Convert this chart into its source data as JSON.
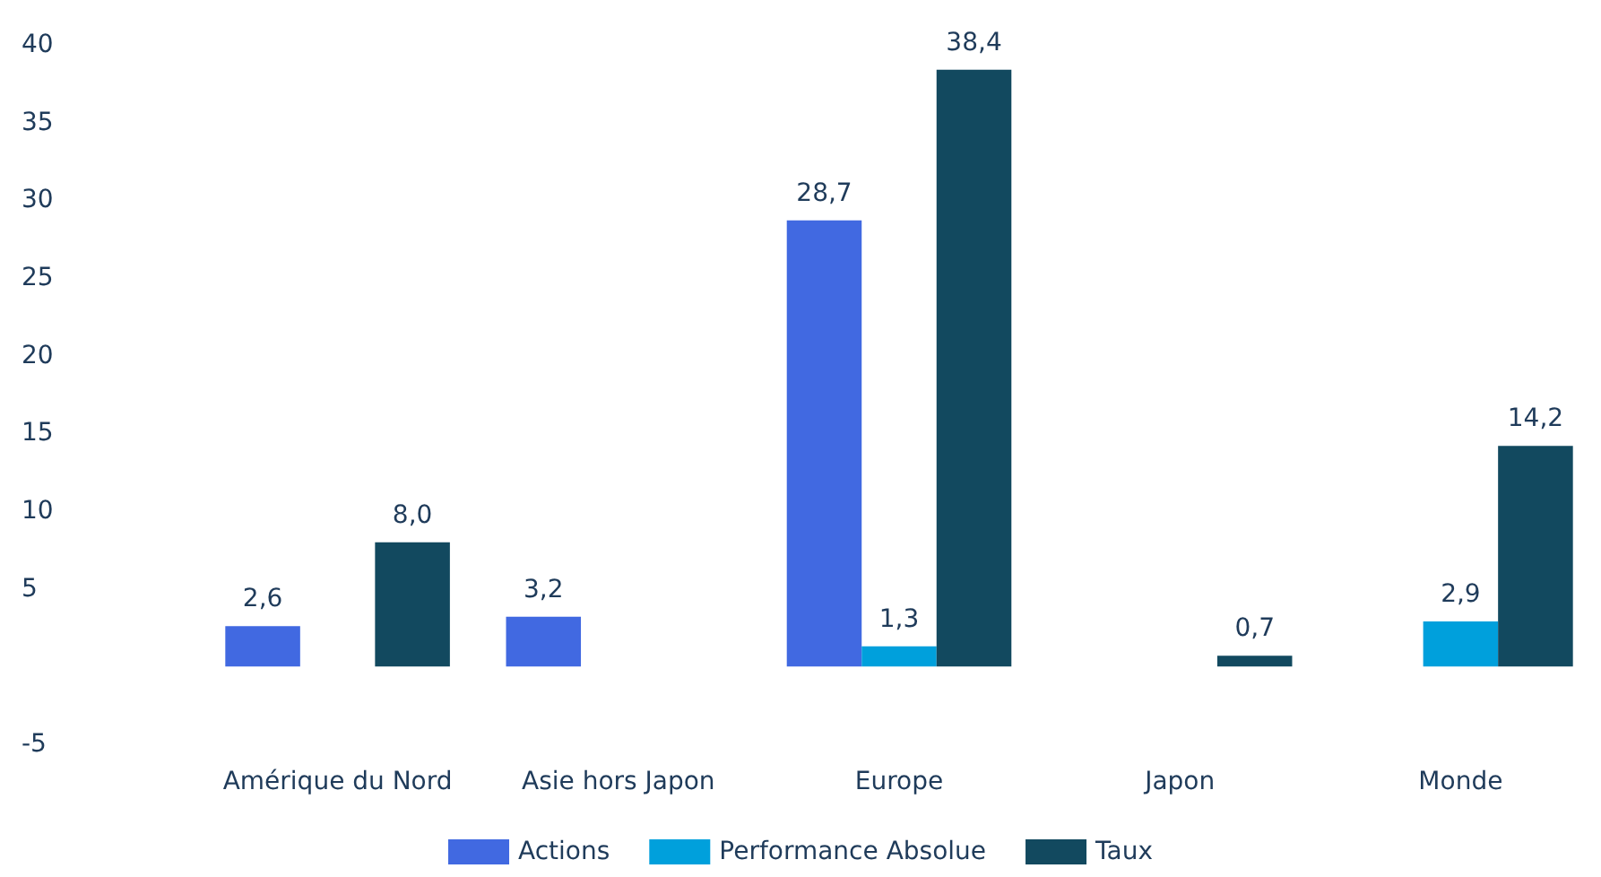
{
  "chart_data": {
    "type": "bar",
    "categories": [
      "Amérique du Nord",
      "Asie hors Japon",
      "Europe",
      "Japon",
      "Monde"
    ],
    "series": [
      {
        "name": "Actions",
        "color": "#4169e1",
        "values": [
          2.6,
          3.2,
          28.7,
          null,
          null
        ],
        "value_labels": [
          "2,6",
          "3,2",
          "28,7",
          null,
          null
        ]
      },
      {
        "name": "Performance Absolue",
        "color": "#00a0dc",
        "values": [
          null,
          null,
          1.3,
          null,
          2.9
        ],
        "value_labels": [
          null,
          null,
          "1,3",
          null,
          "2,9"
        ]
      },
      {
        "name": "Taux",
        "color": "#12495f",
        "values": [
          8.0,
          null,
          38.4,
          0.7,
          14.2
        ],
        "value_labels": [
          "8,0",
          null,
          "38,4",
          "0,7",
          "14,2"
        ]
      }
    ],
    "ylim": [
      -5,
      40
    ],
    "yticks": [
      -5,
      5,
      10,
      15,
      20,
      25,
      30,
      35,
      40
    ],
    "grid": false,
    "legend": "bottom"
  }
}
